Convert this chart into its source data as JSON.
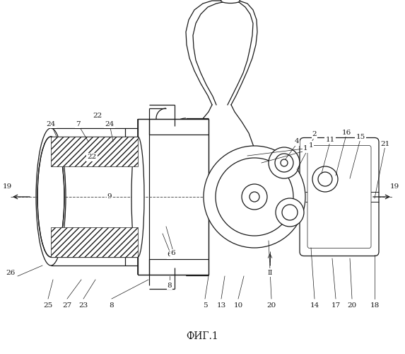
{
  "title": "ФИГ.1",
  "bg_color": "#ffffff",
  "line_color": "#1a1a1a",
  "fig_width": 5.73,
  "fig_height": 5.0,
  "dpi": 100
}
